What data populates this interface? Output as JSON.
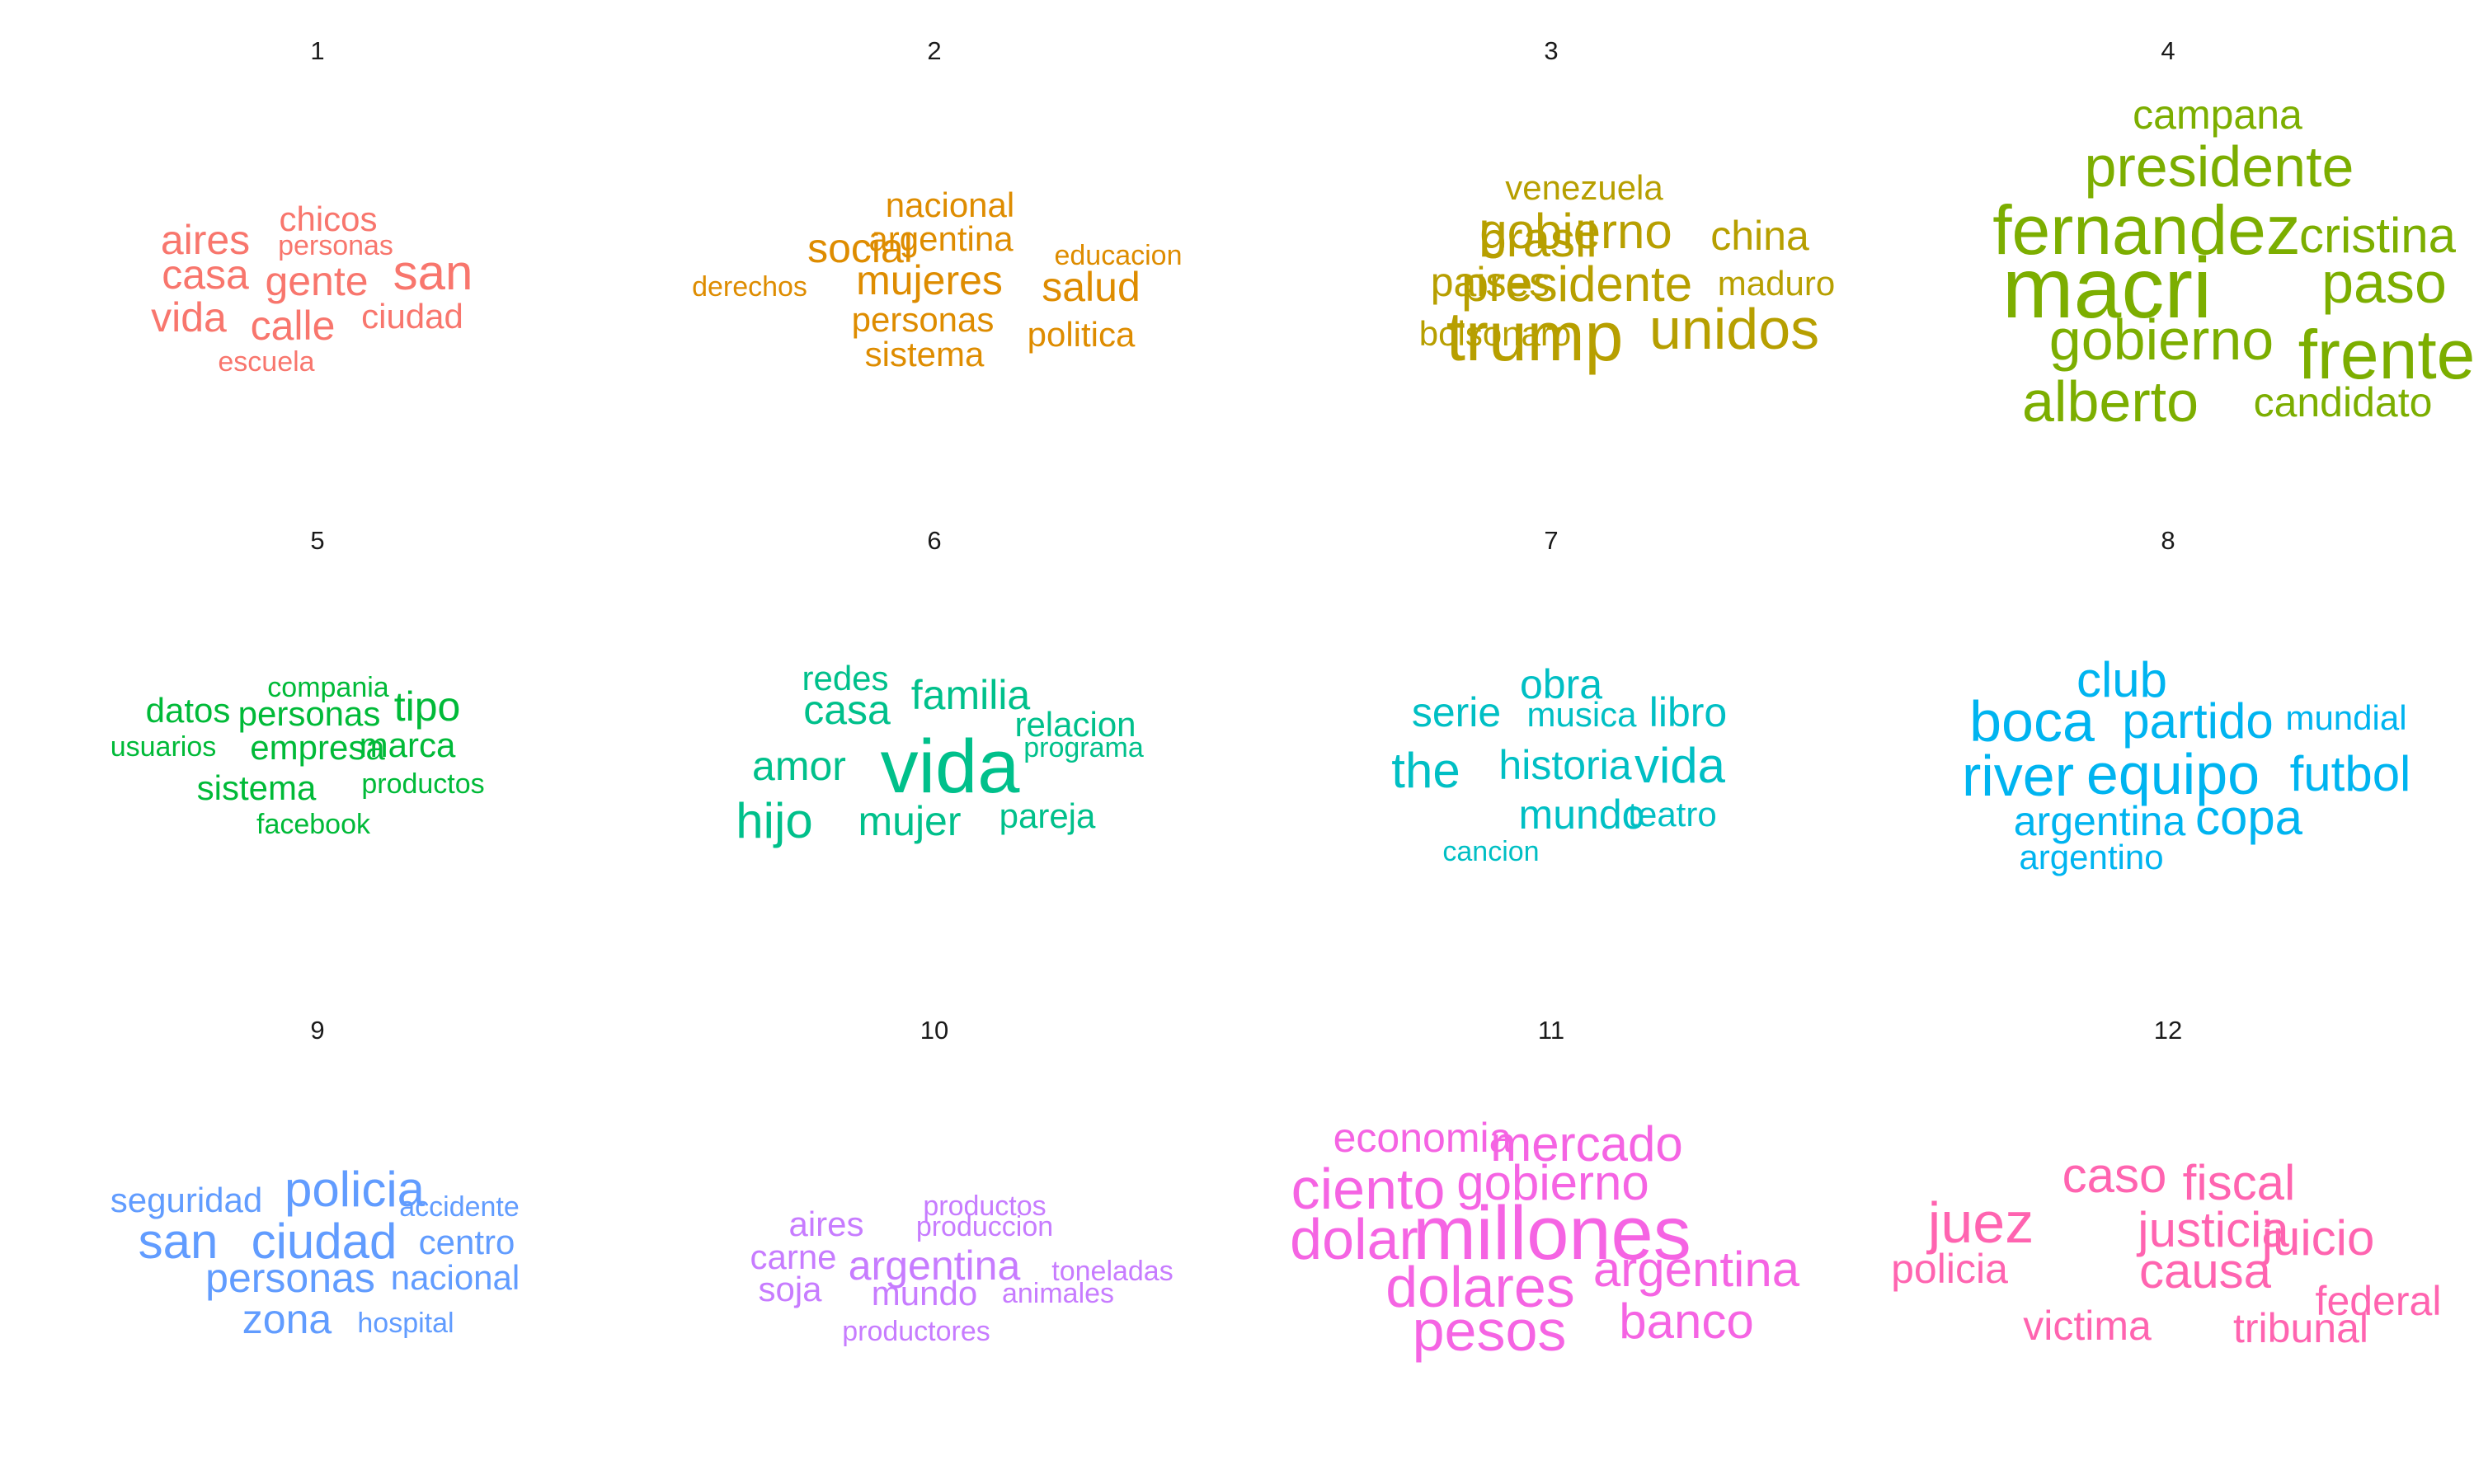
{
  "chart_data": [
    {
      "type": "wordcloud",
      "title": "1",
      "color": "#F8766D",
      "words": [
        {
          "text": "chicos",
          "weight": 2
        },
        {
          "text": "aires",
          "weight": 3
        },
        {
          "text": "personas",
          "weight": 1
        },
        {
          "text": "casa",
          "weight": 3
        },
        {
          "text": "gente",
          "weight": 3
        },
        {
          "text": "san",
          "weight": 4
        },
        {
          "text": "vida",
          "weight": 3
        },
        {
          "text": "calle",
          "weight": 3
        },
        {
          "text": "ciudad",
          "weight": 2
        },
        {
          "text": "escuela",
          "weight": 1
        }
      ]
    },
    {
      "type": "wordcloud",
      "title": "2",
      "color": "#DE8C00",
      "words": [
        {
          "text": "nacional",
          "weight": 2
        },
        {
          "text": "social",
          "weight": 3
        },
        {
          "text": "argentina",
          "weight": 2
        },
        {
          "text": "educacion",
          "weight": 1
        },
        {
          "text": "derechos",
          "weight": 1
        },
        {
          "text": "mujeres",
          "weight": 3
        },
        {
          "text": "salud",
          "weight": 3
        },
        {
          "text": "personas",
          "weight": 2
        },
        {
          "text": "politica",
          "weight": 2
        },
        {
          "text": "sistema",
          "weight": 2
        }
      ]
    },
    {
      "type": "wordcloud",
      "title": "3",
      "color": "#B79F00",
      "words": [
        {
          "text": "venezuela",
          "weight": 2
        },
        {
          "text": "brasil",
          "weight": 4
        },
        {
          "text": "gobierno",
          "weight": 4
        },
        {
          "text": "china",
          "weight": 3
        },
        {
          "text": "paises",
          "weight": 3
        },
        {
          "text": "presidente",
          "weight": 4
        },
        {
          "text": "maduro",
          "weight": 2
        },
        {
          "text": "bolsonaro",
          "weight": 2
        },
        {
          "text": "trump",
          "weight": 6
        },
        {
          "text": "unidos",
          "weight": 5
        }
      ]
    },
    {
      "type": "wordcloud",
      "title": "4",
      "color": "#7CAE00",
      "words": [
        {
          "text": "campana",
          "weight": 3
        },
        {
          "text": "presidente",
          "weight": 5
        },
        {
          "text": "fernandez",
          "weight": 6
        },
        {
          "text": "cristina",
          "weight": 4
        },
        {
          "text": "macri",
          "weight": 8
        },
        {
          "text": "paso",
          "weight": 5
        },
        {
          "text": "gobierno",
          "weight": 5
        },
        {
          "text": "frente",
          "weight": 6
        },
        {
          "text": "alberto",
          "weight": 5
        },
        {
          "text": "candidato",
          "weight": 3
        }
      ]
    },
    {
      "type": "wordcloud",
      "title": "5",
      "color": "#00BA38",
      "words": [
        {
          "text": "compania",
          "weight": 1
        },
        {
          "text": "datos",
          "weight": 2
        },
        {
          "text": "personas",
          "weight": 2
        },
        {
          "text": "tipo",
          "weight": 3
        },
        {
          "text": "usuarios",
          "weight": 1
        },
        {
          "text": "empresa",
          "weight": 2
        },
        {
          "text": "marca",
          "weight": 2
        },
        {
          "text": "sistema",
          "weight": 2
        },
        {
          "text": "productos",
          "weight": 1
        },
        {
          "text": "facebook",
          "weight": 1
        }
      ]
    },
    {
      "type": "wordcloud",
      "title": "6",
      "color": "#00C08B",
      "words": [
        {
          "text": "redes",
          "weight": 2
        },
        {
          "text": "familia",
          "weight": 3
        },
        {
          "text": "casa",
          "weight": 3
        },
        {
          "text": "relacion",
          "weight": 2
        },
        {
          "text": "amor",
          "weight": 3
        },
        {
          "text": "vida",
          "weight": 7
        },
        {
          "text": "programa",
          "weight": 1
        },
        {
          "text": "hijo",
          "weight": 4
        },
        {
          "text": "mujer",
          "weight": 3
        },
        {
          "text": "pareja",
          "weight": 2
        }
      ]
    },
    {
      "type": "wordcloud",
      "title": "7",
      "color": "#00BFC4",
      "words": [
        {
          "text": "obra",
          "weight": 3
        },
        {
          "text": "serie",
          "weight": 3
        },
        {
          "text": "musica",
          "weight": 2
        },
        {
          "text": "libro",
          "weight": 3
        },
        {
          "text": "the",
          "weight": 4
        },
        {
          "text": "historia",
          "weight": 3
        },
        {
          "text": "vida",
          "weight": 4
        },
        {
          "text": "mundo",
          "weight": 3
        },
        {
          "text": "teatro",
          "weight": 2
        },
        {
          "text": "cancion",
          "weight": 1
        }
      ]
    },
    {
      "type": "wordcloud",
      "title": "8",
      "color": "#00B4F0",
      "words": [
        {
          "text": "club",
          "weight": 4
        },
        {
          "text": "boca",
          "weight": 5
        },
        {
          "text": "partido",
          "weight": 4
        },
        {
          "text": "mundial",
          "weight": 2
        },
        {
          "text": "river",
          "weight": 5
        },
        {
          "text": "equipo",
          "weight": 5
        },
        {
          "text": "futbol",
          "weight": 4
        },
        {
          "text": "argentina",
          "weight": 3
        },
        {
          "text": "copa",
          "weight": 4
        },
        {
          "text": "argentino",
          "weight": 2
        }
      ]
    },
    {
      "type": "wordcloud",
      "title": "9",
      "color": "#619CFF",
      "words": [
        {
          "text": "seguridad",
          "weight": 2
        },
        {
          "text": "policia",
          "weight": 4
        },
        {
          "text": "accidente",
          "weight": 1
        },
        {
          "text": "san",
          "weight": 4
        },
        {
          "text": "ciudad",
          "weight": 4
        },
        {
          "text": "centro",
          "weight": 2
        },
        {
          "text": "personas",
          "weight": 3
        },
        {
          "text": "nacional",
          "weight": 2
        },
        {
          "text": "zona",
          "weight": 3
        },
        {
          "text": "hospital",
          "weight": 1
        }
      ]
    },
    {
      "type": "wordcloud",
      "title": "10",
      "color": "#C77CFF",
      "words": [
        {
          "text": "productos",
          "weight": 1
        },
        {
          "text": "aires",
          "weight": 2
        },
        {
          "text": "produccion",
          "weight": 1
        },
        {
          "text": "carne",
          "weight": 2
        },
        {
          "text": "argentina",
          "weight": 3
        },
        {
          "text": "toneladas",
          "weight": 1
        },
        {
          "text": "soja",
          "weight": 2
        },
        {
          "text": "mundo",
          "weight": 2
        },
        {
          "text": "animales",
          "weight": 1
        },
        {
          "text": "productores",
          "weight": 1
        }
      ]
    },
    {
      "type": "wordcloud",
      "title": "11",
      "color": "#F564E3",
      "words": [
        {
          "text": "economia",
          "weight": 3
        },
        {
          "text": "mercado",
          "weight": 4
        },
        {
          "text": "ciento",
          "weight": 5
        },
        {
          "text": "gobierno",
          "weight": 4
        },
        {
          "text": "dolar",
          "weight": 5
        },
        {
          "text": "millones",
          "weight": 7
        },
        {
          "text": "dolares",
          "weight": 5
        },
        {
          "text": "argentina",
          "weight": 4
        },
        {
          "text": "pesos",
          "weight": 5
        },
        {
          "text": "banco",
          "weight": 4
        }
      ]
    },
    {
      "type": "wordcloud",
      "title": "12",
      "color": "#FF64B0",
      "words": [
        {
          "text": "caso",
          "weight": 4
        },
        {
          "text": "fiscal",
          "weight": 4
        },
        {
          "text": "juez",
          "weight": 5
        },
        {
          "text": "justicia",
          "weight": 4
        },
        {
          "text": "juicio",
          "weight": 4
        },
        {
          "text": "policia",
          "weight": 3
        },
        {
          "text": "causa",
          "weight": 4
        },
        {
          "text": "federal",
          "weight": 3
        },
        {
          "text": "victima",
          "weight": 3
        },
        {
          "text": "tribunal",
          "weight": 3
        }
      ]
    }
  ]
}
